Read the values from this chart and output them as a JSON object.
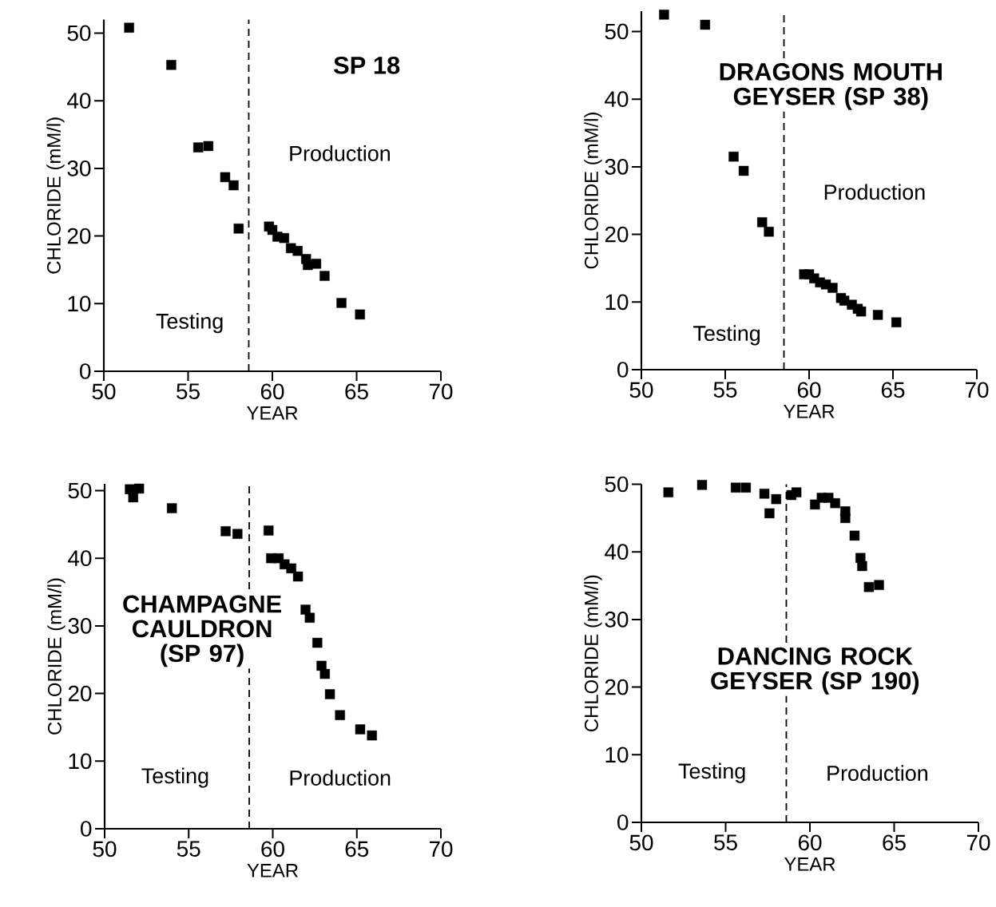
{
  "chart_data": [
    {
      "type": "scatter",
      "title": "SP 18",
      "xlabel": "YEAR",
      "ylabel": "CHLORIDE (mM/l)",
      "annotations": [
        "Testing",
        "Production"
      ],
      "color": "#000000",
      "marker": "square",
      "x": [
        51.5,
        54.0,
        55.6,
        56.2,
        57.2,
        57.7,
        58.0,
        59.8,
        60.0,
        60.3,
        60.7,
        61.1,
        61.5,
        62.0,
        62.1,
        62.6,
        63.1,
        64.1,
        65.2
      ],
      "values": [
        50.8,
        45.3,
        33.1,
        33.3,
        28.7,
        27.5,
        21.1,
        21.4,
        20.9,
        19.9,
        19.7,
        18.2,
        17.8,
        16.6,
        15.7,
        15.9,
        14.1,
        10.1,
        8.4
      ],
      "xlim": [
        50,
        70
      ],
      "ylim": [
        0,
        52
      ],
      "xticks": [
        50,
        55,
        60,
        65,
        70
      ],
      "yticks": [
        0,
        10,
        20,
        30,
        40,
        50
      ],
      "ref_lines": [
        {
          "axis": "x",
          "value": 58.6,
          "line_style": "dashed"
        }
      ]
    },
    {
      "type": "scatter",
      "title": "DRAGONS MOUTH GEYSER (SP 38)",
      "xlabel": "YEAR",
      "ylabel": "CHLORIDE (mM/l)",
      "annotations": [
        "Testing",
        "Production"
      ],
      "color": "#000000",
      "marker": "square",
      "x": [
        51.35,
        53.8,
        55.5,
        56.1,
        57.2,
        57.6,
        59.7,
        60.0,
        60.3,
        60.65,
        61.0,
        61.4,
        61.9,
        62.1,
        62.55,
        62.9,
        63.1,
        64.1,
        65.2
      ],
      "values": [
        52.5,
        51.0,
        31.5,
        29.4,
        21.8,
        20.4,
        14.1,
        14.1,
        13.5,
        12.9,
        12.6,
        12.1,
        10.6,
        10.2,
        9.6,
        9.0,
        8.6,
        8.1,
        7.0
      ],
      "xlim": [
        50,
        70
      ],
      "ylim": [
        0,
        53
      ],
      "xticks": [
        50,
        55,
        60,
        65,
        70
      ],
      "yticks": [
        0,
        10,
        20,
        30,
        40,
        50
      ],
      "ref_lines": [
        {
          "axis": "x",
          "value": 58.5,
          "line_style": "dashed"
        }
      ]
    },
    {
      "type": "scatter",
      "title": "CHAMPAGNE CAULDRON (SP 97)",
      "xlabel": "YEAR",
      "ylabel": "CHLORIDE (mM/l)",
      "annotations": [
        "Testing",
        "Production"
      ],
      "color": "#000000",
      "marker": "square",
      "x": [
        51.5,
        51.7,
        51.8,
        52.05,
        54.0,
        57.2,
        57.9,
        59.75,
        59.9,
        60.35,
        60.7,
        61.1,
        61.5,
        61.95,
        62.2,
        62.65,
        62.9,
        63.1,
        63.4,
        64.0,
        65.2,
        65.9
      ],
      "values": [
        50.2,
        49.0,
        null,
        50.3,
        47.4,
        44.0,
        43.6,
        44.1,
        40.0,
        40.0,
        39.1,
        38.5,
        37.3,
        32.4,
        31.2,
        27.5,
        24.1,
        22.9,
        19.9,
        16.8,
        14.7,
        13.8
      ],
      "xlim": [
        50,
        70
      ],
      "ylim": [
        0,
        51
      ],
      "xticks": [
        50,
        55,
        60,
        65,
        70
      ],
      "yticks": [
        0,
        10,
        20,
        30,
        40,
        50
      ],
      "ref_lines": [
        {
          "axis": "x",
          "value": 58.6,
          "line_style": "dashed"
        }
      ]
    },
    {
      "type": "scatter",
      "title": "DANCING ROCK GEYSER (SP 190)",
      "xlabel": "YEAR",
      "ylabel": "CHLORIDE (mM/l)",
      "annotations": [
        "Testing",
        "Production"
      ],
      "color": "#000000",
      "marker": "square",
      "x": [
        51.6,
        53.6,
        55.6,
        56.2,
        57.3,
        57.6,
        58.0,
        58.9,
        59.2,
        60.3,
        60.7,
        61.1,
        61.5,
        62.1,
        62.1,
        62.65,
        63.0,
        63.1,
        63.5,
        64.1
      ],
      "values": [
        48.8,
        49.9,
        49.5,
        49.5,
        48.6,
        45.7,
        47.8,
        48.4,
        48.8,
        47.0,
        48.0,
        48.0,
        47.2,
        46.0,
        45.0,
        42.4,
        39.1,
        37.9,
        34.8,
        35.1
      ],
      "xlim": [
        50,
        70
      ],
      "ylim": [
        0,
        50
      ],
      "xticks": [
        50,
        55,
        60,
        65,
        70
      ],
      "yticks": [
        0,
        10,
        20,
        30,
        40,
        50
      ],
      "ref_lines": [
        {
          "axis": "x",
          "value": 58.6,
          "line_style": "dashed"
        }
      ]
    }
  ]
}
